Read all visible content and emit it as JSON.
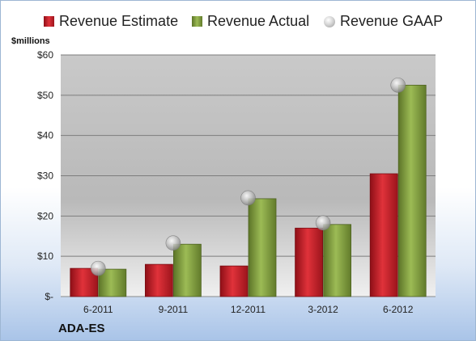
{
  "unit_label": "$millions",
  "ticker": "ADA-ES",
  "colors": {
    "estimate": "#c0202a",
    "actual": "#7e9b3c",
    "gaap": "#b0b0b0",
    "plot_background": "#c7c7c7"
  },
  "chart_data": {
    "type": "bar",
    "title": "",
    "xlabel": "",
    "ylabel": "$millions",
    "categories": [
      "6-2011",
      "9-2011",
      "12-2011",
      "3-2012",
      "6-2012"
    ],
    "ylim": [
      0,
      60
    ],
    "yticks": [
      0,
      10,
      20,
      30,
      40,
      50,
      60
    ],
    "ytick_labels": [
      "$-",
      "$10",
      "$20",
      "$30",
      "$40",
      "$50",
      "$60"
    ],
    "grid": true,
    "legend_position": "top",
    "series": [
      {
        "name": "Revenue Estimate",
        "kind": "bar",
        "values": [
          7.0,
          8.0,
          7.6,
          17.0,
          30.5
        ]
      },
      {
        "name": "Revenue Actual",
        "kind": "bar",
        "values": [
          6.8,
          13.0,
          24.3,
          17.9,
          52.5
        ]
      },
      {
        "name": "Revenue GAAP",
        "kind": "point",
        "values": [
          7.0,
          13.3,
          24.5,
          18.3,
          52.5
        ]
      }
    ]
  }
}
